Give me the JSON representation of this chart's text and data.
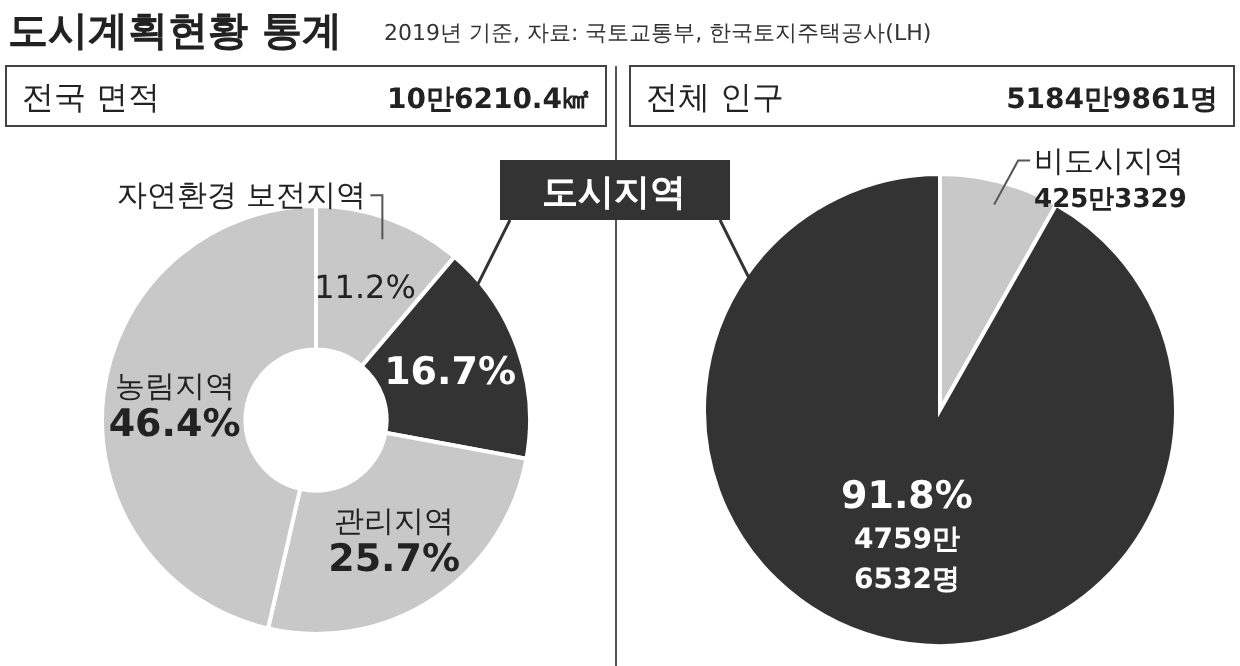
{
  "chart_data": [
    {
      "type": "donut",
      "title": "도시계획현황 통계",
      "subtitle": "2019년 기준, 자료: 국토교통부, 한국토지주택공사(LH)",
      "annotations": [
        "전국 면적",
        "10만6210.4㎢",
        "도시지역"
      ],
      "categories": [
        "자연환경 보전지역",
        null,
        "관리지역",
        "농림지역"
      ],
      "values": [
        11.2,
        16.7,
        25.7,
        46.4
      ],
      "colors": [
        "#c8c8c8",
        "#333333",
        "#c8c8c8",
        "#c8c8c8"
      ],
      "value_labels": [
        "11.2%",
        "16.7%",
        "25.7%",
        "46.4%"
      ]
    },
    {
      "type": "pie",
      "annotations": [
        "전체 인구",
        "5184만9861명",
        "425만3329",
        "4759만\n6532명"
      ],
      "categories": [
        "비도시지역",
        null
      ],
      "values": [
        8.2,
        91.8
      ],
      "colors": [
        "#c8c8c8",
        "#333333"
      ],
      "value_labels": [
        null,
        "91.8%"
      ]
    }
  ]
}
